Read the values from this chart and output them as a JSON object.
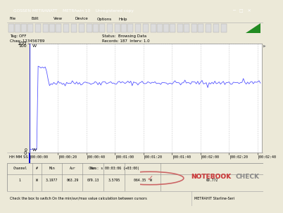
{
  "title": "GOSSEN METRAWATT    METRAwin 10    Unregistered copy",
  "y_label": "W",
  "y_max": 100,
  "y_min": 0,
  "x_ticks_labels": [
    "|00:00:00",
    "|00:00:20",
    "|00:00:40",
    "|00:01:00",
    "|00:01:20",
    "|00:01:40",
    "|00:02:00",
    "|00:02:20",
    "|00:02:40"
  ],
  "x_label": "HH MM SS",
  "line_color": "#5555FF",
  "bg_color": "#ECE9D8",
  "plot_bg_color": "#FFFFFF",
  "grid_color": "#CCCCCC",
  "grid_linestyle": "--",
  "baseline_watts": 3.0,
  "peak_watts": 79.0,
  "stable_watts": 64.0,
  "total_time": 163,
  "status_text": "Status:  Browsing Data",
  "records_text": "Records: 187  Interv: 1.0",
  "tag_text": "Tag: OFF",
  "chan_text": "Chan: 123456789",
  "table_min": "3.1977",
  "table_avg": "063.29",
  "table_max": "079.13",
  "table_cur_time": "s 00:03:06 (+03:00)",
  "table_cur_val": "3.5795",
  "table_cur_w": "064.35  W",
  "table_extra": "60.772",
  "titlebar_color": "#0A246A",
  "titlebar_text_color": "#FFFFFF",
  "menu_bg": "#ECE9D8",
  "toolbar_bg": "#ECE9D8",
  "info_bg": "#ECE9D8",
  "table_bg": "#FFFFFF",
  "status_bg": "#ECE9D8",
  "window_border": "#808080"
}
